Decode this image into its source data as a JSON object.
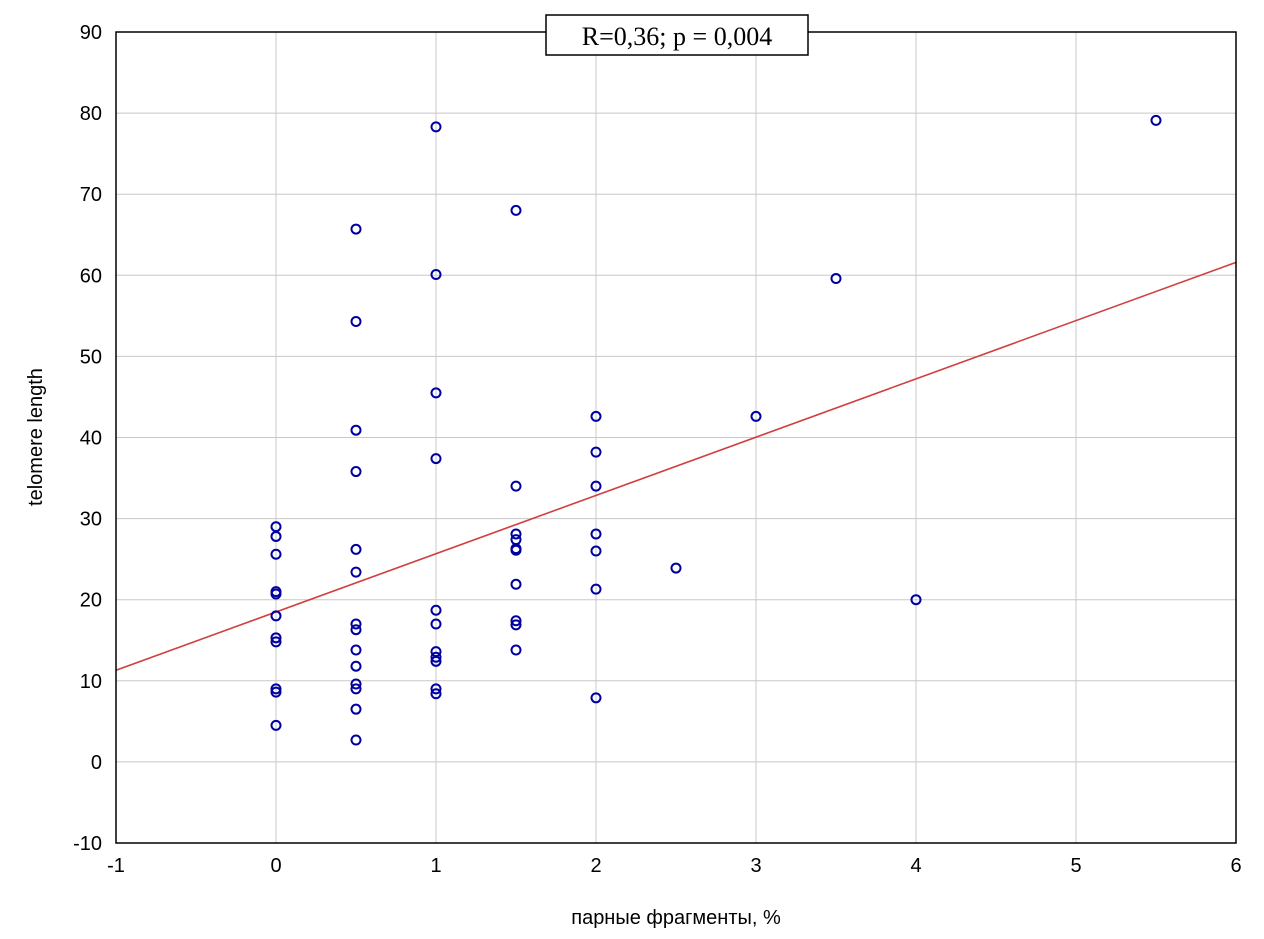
{
  "chart_data": {
    "type": "scatter",
    "title": "",
    "annotation": "R=0,36; p = 0,004",
    "xlabel": "парные фрагменты, %",
    "ylabel": "telomere length",
    "xlim": [
      -1,
      6
    ],
    "ylim": [
      -10,
      90
    ],
    "x_ticks": [
      "-1",
      "0",
      "1",
      "2",
      "3",
      "4",
      "5",
      "6"
    ],
    "y_ticks": [
      "-10",
      "0",
      "10",
      "20",
      "30",
      "40",
      "50",
      "60",
      "70",
      "80",
      "90"
    ],
    "grid": true,
    "colors": {
      "points": "#0000a0",
      "fit_line": "#d04040",
      "grid": "#c8c8c8"
    },
    "points": [
      [
        0,
        29
      ],
      [
        0,
        27.8
      ],
      [
        0,
        25.6
      ],
      [
        0,
        21
      ],
      [
        0,
        20.7
      ],
      [
        0,
        18
      ],
      [
        0,
        15.3
      ],
      [
        0,
        14.8
      ],
      [
        0,
        9
      ],
      [
        0,
        8.6
      ],
      [
        0,
        4.5
      ],
      [
        0.5,
        65.7
      ],
      [
        0.5,
        54.3
      ],
      [
        0.5,
        40.9
      ],
      [
        0.5,
        35.8
      ],
      [
        0.5,
        26.2
      ],
      [
        0.5,
        23.4
      ],
      [
        0.5,
        17
      ],
      [
        0.5,
        16.3
      ],
      [
        0.5,
        13.8
      ],
      [
        0.5,
        11.8
      ],
      [
        0.5,
        9.6
      ],
      [
        0.5,
        9
      ],
      [
        0.5,
        6.5
      ],
      [
        0.5,
        2.7
      ],
      [
        1,
        78.3
      ],
      [
        1,
        60.1
      ],
      [
        1,
        45.5
      ],
      [
        1,
        37.4
      ],
      [
        1,
        18.7
      ],
      [
        1,
        17
      ],
      [
        1,
        13.6
      ],
      [
        1,
        12.9
      ],
      [
        1,
        12.4
      ],
      [
        1,
        9
      ],
      [
        1,
        8.4
      ],
      [
        1.5,
        68
      ],
      [
        1.5,
        34
      ],
      [
        1.5,
        28.1
      ],
      [
        1.5,
        27.4
      ],
      [
        1.5,
        26.3
      ],
      [
        1.5,
        26.1
      ],
      [
        1.5,
        21.9
      ],
      [
        1.5,
        17.4
      ],
      [
        1.5,
        16.9
      ],
      [
        1.5,
        13.8
      ],
      [
        2,
        42.6
      ],
      [
        2,
        38.2
      ],
      [
        2,
        34
      ],
      [
        2,
        28.1
      ],
      [
        2,
        26
      ],
      [
        2,
        21.3
      ],
      [
        2,
        7.9
      ],
      [
        2.5,
        23.9
      ],
      [
        3,
        42.6
      ],
      [
        3.5,
        59.6
      ],
      [
        4,
        20
      ],
      [
        5.5,
        79.1
      ]
    ],
    "fit_line": {
      "x": [
        -1,
        6
      ],
      "y": [
        11.3,
        61.6
      ]
    }
  }
}
